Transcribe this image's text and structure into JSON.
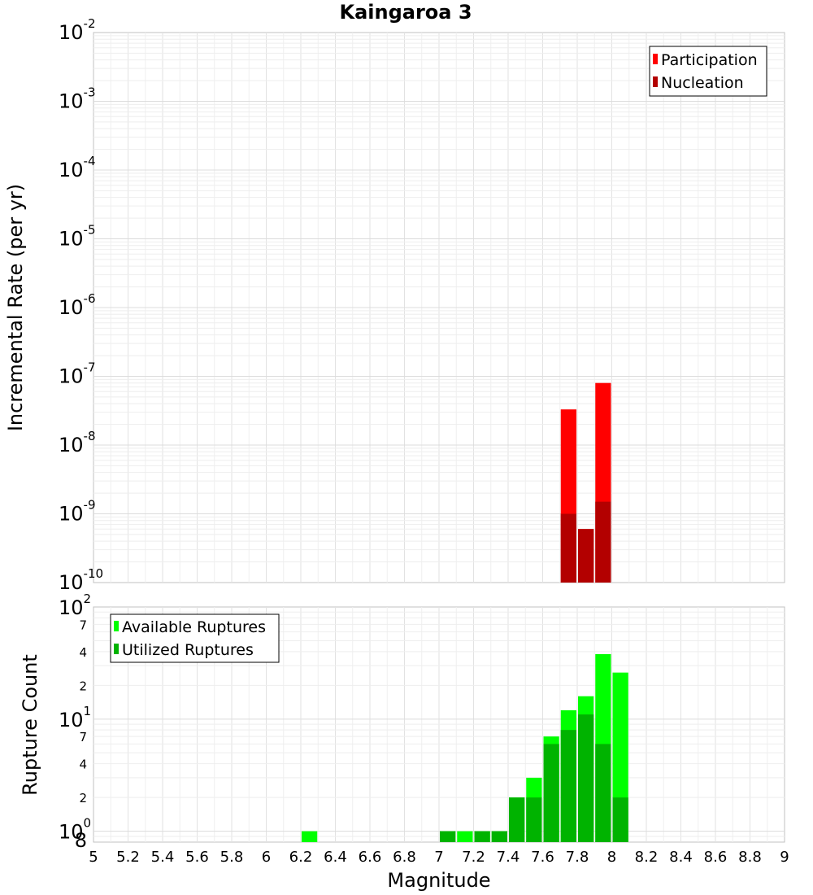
{
  "chart_data": [
    {
      "type": "bar",
      "title": "Kaingaroa 3",
      "xlabel": "",
      "ylabel": "Incremental Rate (per yr)",
      "yscale": "log",
      "ylim": [
        1e-10,
        0.01
      ],
      "xlim": [
        5,
        9
      ],
      "y_ticks": [
        {
          "base": "10",
          "exp": "-2"
        },
        {
          "base": "10",
          "exp": "-3"
        },
        {
          "base": "10",
          "exp": "-4"
        },
        {
          "base": "10",
          "exp": "-5"
        },
        {
          "base": "10",
          "exp": "-6"
        },
        {
          "base": "10",
          "exp": "-7"
        },
        {
          "base": "10",
          "exp": "-8"
        },
        {
          "base": "10",
          "exp": "-9"
        },
        {
          "base": "10",
          "exp": "-10"
        }
      ],
      "bin_width": 0.1,
      "legend_position": "top-right",
      "grid": true,
      "series": [
        {
          "name": "Participation",
          "color": "#ff0000",
          "x": [
            7.75,
            7.85,
            7.95
          ],
          "values": [
            3.3e-08,
            6e-10,
            8e-08
          ]
        },
        {
          "name": "Nucleation",
          "color": "#b30000",
          "x": [
            7.75,
            7.85,
            7.95
          ],
          "values": [
            1e-09,
            6e-10,
            1.5e-09
          ]
        }
      ]
    },
    {
      "type": "bar",
      "title": "",
      "xlabel": "Magnitude",
      "ylabel": "Rupture Count",
      "yscale": "log",
      "ylim": [
        0.8,
        100
      ],
      "xlim": [
        5,
        9
      ],
      "x_ticks": [
        "5",
        "5.2",
        "5.4",
        "5.6",
        "5.8",
        "6",
        "6.2",
        "6.4",
        "6.6",
        "6.8",
        "7",
        "7.2",
        "7.4",
        "7.6",
        "7.8",
        "8",
        "8.2",
        "8.4",
        "8.6",
        "8.8",
        "9"
      ],
      "y_major_ticks": [
        {
          "base": "10",
          "exp": "2"
        },
        {
          "base": "10",
          "exp": "1"
        },
        {
          "base": "10",
          "exp": "0"
        }
      ],
      "y_minor_ticks": [
        {
          "value": 70,
          "label": "7"
        },
        {
          "value": 40,
          "label": "4"
        },
        {
          "value": 20,
          "label": "2"
        },
        {
          "value": 7,
          "label": "7"
        },
        {
          "value": 4,
          "label": "4"
        },
        {
          "value": 2,
          "label": "2"
        },
        {
          "value": 0.8,
          "label": "8"
        }
      ],
      "bin_width": 0.1,
      "legend_position": "top-left",
      "grid": true,
      "series": [
        {
          "name": "Available Ruptures",
          "color": "#00ff00",
          "x": [
            6.25,
            7.05,
            7.15,
            7.25,
            7.35,
            7.45,
            7.55,
            7.65,
            7.75,
            7.85,
            7.95,
            8.05
          ],
          "values": [
            1,
            1,
            1,
            1,
            1,
            2,
            3,
            7,
            12,
            16,
            38,
            26
          ]
        },
        {
          "name": "Utilized Ruptures",
          "color": "#00b300",
          "x": [
            7.05,
            7.25,
            7.35,
            7.45,
            7.55,
            7.65,
            7.75,
            7.85,
            7.95,
            8.05
          ],
          "values": [
            1,
            1,
            1,
            2,
            2,
            6,
            8,
            11,
            6,
            2
          ]
        }
      ]
    }
  ]
}
